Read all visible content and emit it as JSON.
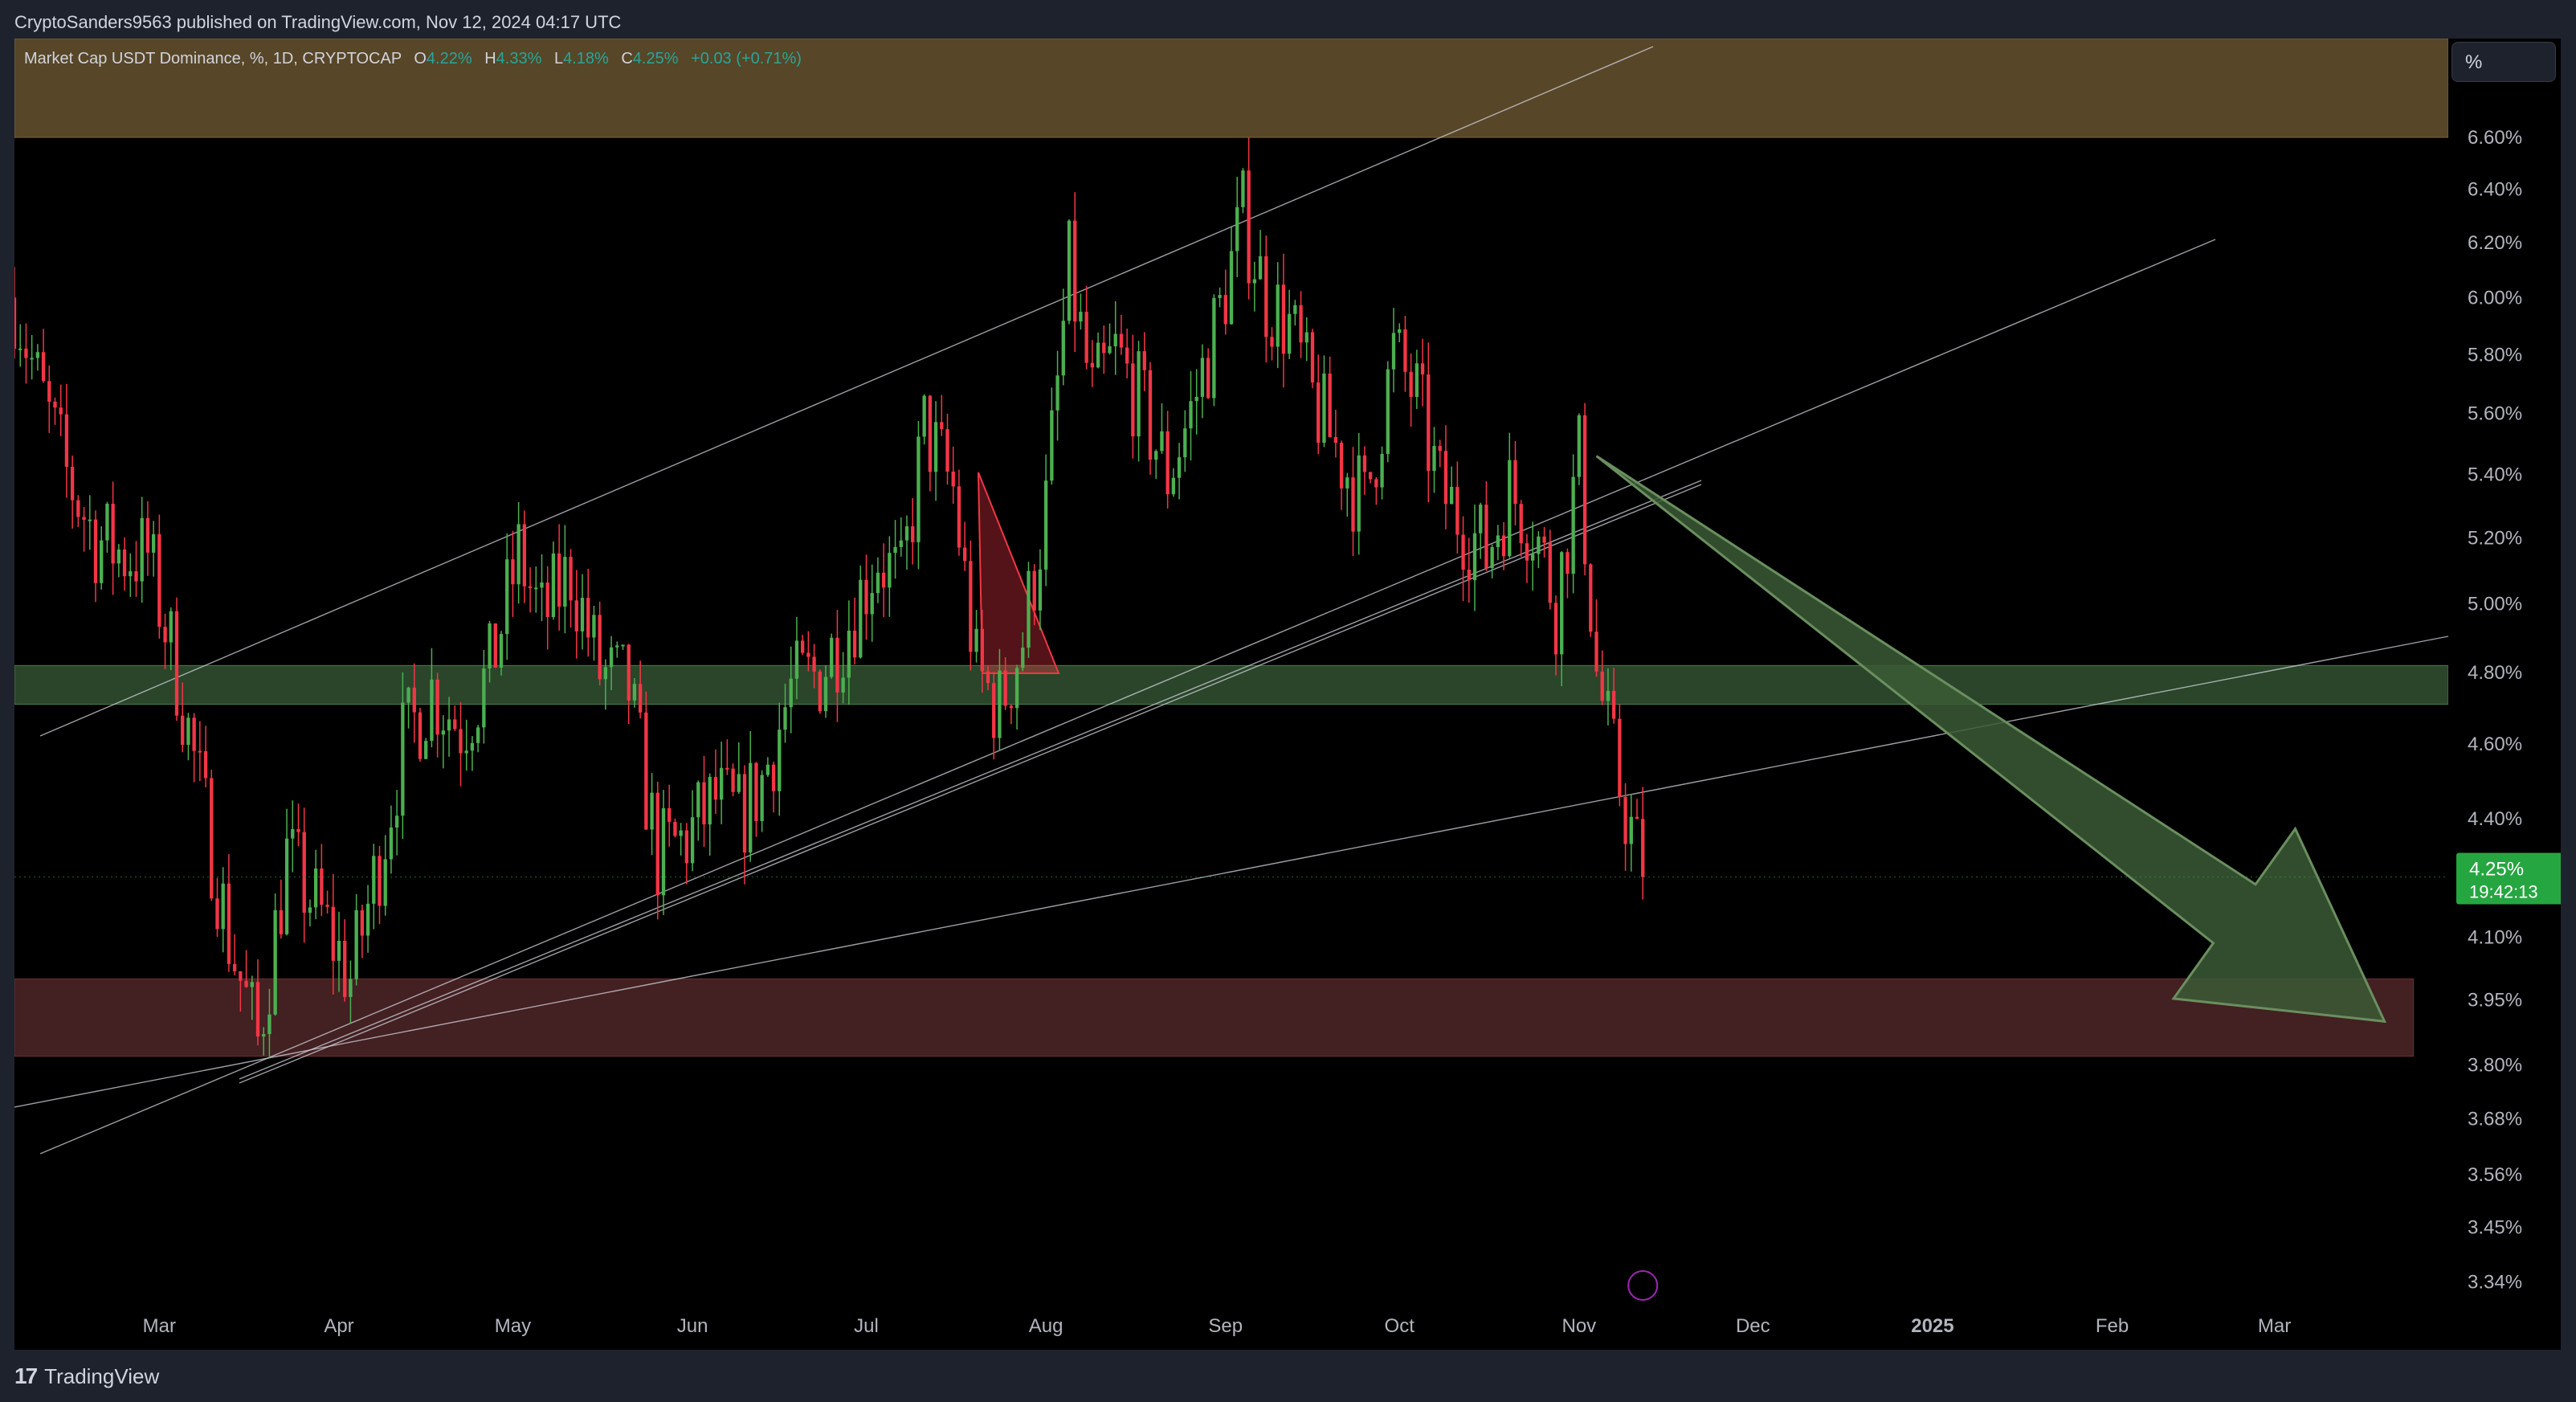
{
  "header": {
    "published_line": "CryptoSanders9563 published on TradingView.com, Nov 12, 2024 04:17 UTC"
  },
  "legend": {
    "symbol": "Market Cap USDT Dominance, %, 1D, CRYPTOCAP",
    "open_label": "O",
    "open": "4.22%",
    "high_label": "H",
    "high": "4.33%",
    "low_label": "L",
    "low": "4.18%",
    "close_label": "C",
    "close": "4.25%",
    "change": "+0.03 (+0.71%)"
  },
  "scale_button": "%",
  "footer": {
    "brand": "TradingView",
    "logo_mark": "17"
  },
  "colors": {
    "up": "#4caf50",
    "down": "#f23645",
    "background": "#000000",
    "panel": "#1e222d",
    "resistance_zone": "#5c4a2a",
    "green_zone": "#2f4d2f",
    "red_zone": "#4a2426",
    "arrow_fill": "#3b5a35",
    "price_label_bg": "#26a641"
  },
  "chart_data": {
    "type": "candlestick",
    "title": "Market Cap USDT Dominance, %, 1D, CRYPTOCAP",
    "y_scale": "log",
    "ylim": [
      3.32,
      7.0
    ],
    "y_ticks": [
      "6.60%",
      "6.40%",
      "6.20%",
      "6.00%",
      "5.80%",
      "5.60%",
      "5.40%",
      "5.20%",
      "5.00%",
      "4.80%",
      "4.60%",
      "4.40%",
      "4.10%",
      "3.95%",
      "3.80%",
      "3.68%",
      "3.56%",
      "3.45%",
      "3.34%"
    ],
    "y_tick_values": [
      6.6,
      6.4,
      6.2,
      6.0,
      5.8,
      5.6,
      5.4,
      5.2,
      5.0,
      4.8,
      4.6,
      4.4,
      4.1,
      3.95,
      3.8,
      3.68,
      3.56,
      3.45,
      3.34
    ],
    "x_ticks": [
      "Mar",
      "Apr",
      "May",
      "Jun",
      "Jul",
      "Aug",
      "Sep",
      "Oct",
      "Nov",
      "Dec",
      "2025",
      "Feb",
      "Mar"
    ],
    "x_tick_dates": [
      "2024-03-01",
      "2024-04-01",
      "2024-05-01",
      "2024-06-01",
      "2024-07-01",
      "2024-08-01",
      "2024-09-01",
      "2024-10-01",
      "2024-11-01",
      "2024-12-01",
      "2025-01-01",
      "2025-02-01",
      "2025-03-01"
    ],
    "x_range": [
      "2024-02-05",
      "2025-03-31"
    ],
    "last_price": {
      "value": 4.25,
      "label": "4.25%",
      "countdown": "19:42:13"
    },
    "path_dates": [
      "2024-02-05",
      "2024-02-09",
      "2024-02-14",
      "2024-02-19",
      "2024-02-24",
      "2024-02-28",
      "2024-03-04",
      "2024-03-09",
      "2024-03-13",
      "2024-03-18",
      "2024-03-23",
      "2024-03-29",
      "2024-04-03",
      "2024-04-08",
      "2024-04-12",
      "2024-04-17",
      "2024-04-22",
      "2024-04-27",
      "2024-05-02",
      "2024-05-06",
      "2024-05-11",
      "2024-05-16",
      "2024-05-21",
      "2024-05-26",
      "2024-05-31",
      "2024-06-05",
      "2024-06-09",
      "2024-06-13",
      "2024-06-18",
      "2024-06-23",
      "2024-06-28",
      "2024-07-03",
      "2024-07-07",
      "2024-07-11",
      "2024-07-16",
      "2024-07-20",
      "2024-07-24",
      "2024-07-28",
      "2024-08-01",
      "2024-08-05",
      "2024-08-09",
      "2024-08-13",
      "2024-08-17",
      "2024-08-22",
      "2024-08-26",
      "2024-08-31",
      "2024-09-04",
      "2024-09-08",
      "2024-09-12",
      "2024-09-16",
      "2024-09-21",
      "2024-09-25",
      "2024-09-30",
      "2024-10-04",
      "2024-10-08",
      "2024-10-12",
      "2024-10-16",
      "2024-10-20",
      "2024-10-24",
      "2024-10-28",
      "2024-11-01",
      "2024-11-04",
      "2024-11-07",
      "2024-11-12"
    ],
    "path_values": [
      6.0,
      5.7,
      5.4,
      5.2,
      5.15,
      5.15,
      4.8,
      4.4,
      4.1,
      3.85,
      4.3,
      4.15,
      4.0,
      4.3,
      4.6,
      4.75,
      4.65,
      4.8,
      5.15,
      4.95,
      5.1,
      4.8,
      4.75,
      4.3,
      4.35,
      4.45,
      4.4,
      4.5,
      4.75,
      4.8,
      4.95,
      5.15,
      5.05,
      5.55,
      5.35,
      4.8,
      4.7,
      4.9,
      5.3,
      6.1,
      5.65,
      5.8,
      5.65,
      5.4,
      5.6,
      5.95,
      6.3,
      6.0,
      5.9,
      5.65,
      5.45,
      5.3,
      5.8,
      5.65,
      5.35,
      5.25,
      5.15,
      5.35,
      5.25,
      5.0,
      5.45,
      4.8,
      4.55,
      4.25
    ],
    "annotations": [
      {
        "type": "zone",
        "name": "resistance zone",
        "y_from": 6.6,
        "y_to": 7.0,
        "x_from": "2024-02-05",
        "x_to": "2025-03-31"
      },
      {
        "type": "zone",
        "name": "support/resistance zone",
        "y_from": 4.71,
        "y_to": 4.82,
        "x_from": "2024-02-05",
        "x_to": "2025-03-31"
      },
      {
        "type": "zone",
        "name": "target zone",
        "y_from": 3.82,
        "y_to": 4.0,
        "x_from": "2024-02-05",
        "x_to": "2025-03-25"
      },
      {
        "type": "arrow",
        "from": [
          "2024-11-04",
          5.46
        ],
        "to": [
          "2025-03-20",
          3.9
        ]
      }
    ]
  }
}
